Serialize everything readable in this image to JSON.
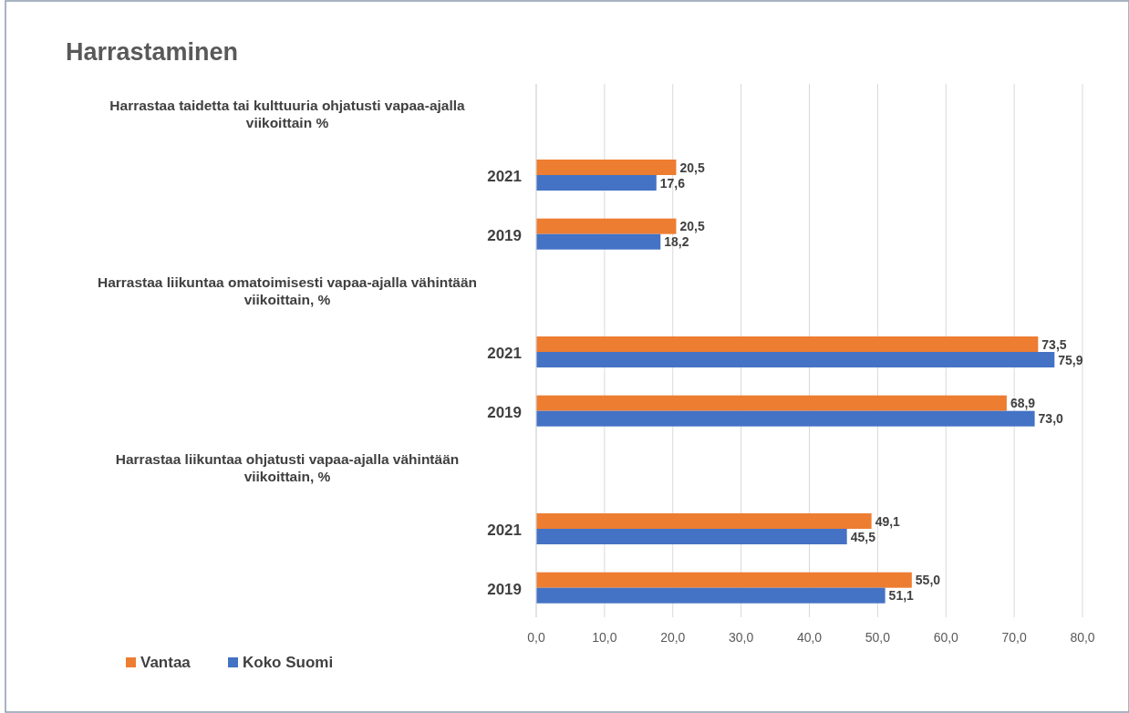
{
  "chart_data": {
    "type": "bar",
    "orientation": "horizontal",
    "title": "Harrastaminen",
    "categories": [
      "Harrastaa taidetta tai kulttuuria ohjatusti vapaa-ajalla viikoittain %",
      "2021",
      "2019",
      "Harrastaa liikuntaa omatoimisesti vapaa-ajalla vähintään viikoittain, %",
      "2021",
      "2019",
      "Harrastaa liikuntaa ohjatusti vapaa-ajalla vähintään viikoittain, %",
      "2021",
      "2019"
    ],
    "series": [
      {
        "name": "Vantaa",
        "color": "#ed7d31",
        "values": [
          null,
          20.5,
          20.5,
          null,
          73.5,
          68.9,
          null,
          49.1,
          55.0
        ],
        "value_labels": [
          null,
          "20,5",
          "20,5",
          null,
          "73,5",
          "68,9",
          null,
          "49,1",
          "55,0"
        ]
      },
      {
        "name": "Koko Suomi",
        "color": "#4472c4",
        "values": [
          null,
          17.6,
          18.2,
          null,
          75.9,
          73.0,
          null,
          45.5,
          51.1
        ],
        "value_labels": [
          null,
          "17,6",
          "18,2",
          null,
          "75,9",
          "73,0",
          null,
          "45,5",
          "51,1"
        ]
      }
    ],
    "xlim": [
      0,
      80
    ],
    "xticks": [
      {
        "value": 0,
        "label": "0,0"
      },
      {
        "value": 10,
        "label": "10,0"
      },
      {
        "value": 20,
        "label": "20,0"
      },
      {
        "value": 30,
        "label": "30,0"
      },
      {
        "value": 40,
        "label": "40,0"
      },
      {
        "value": 50,
        "label": "50,0"
      },
      {
        "value": 60,
        "label": "60,0"
      },
      {
        "value": 70,
        "label": "70,0"
      },
      {
        "value": 80,
        "label": "80,0"
      }
    ],
    "grid": "x",
    "legend": "bottom left"
  }
}
